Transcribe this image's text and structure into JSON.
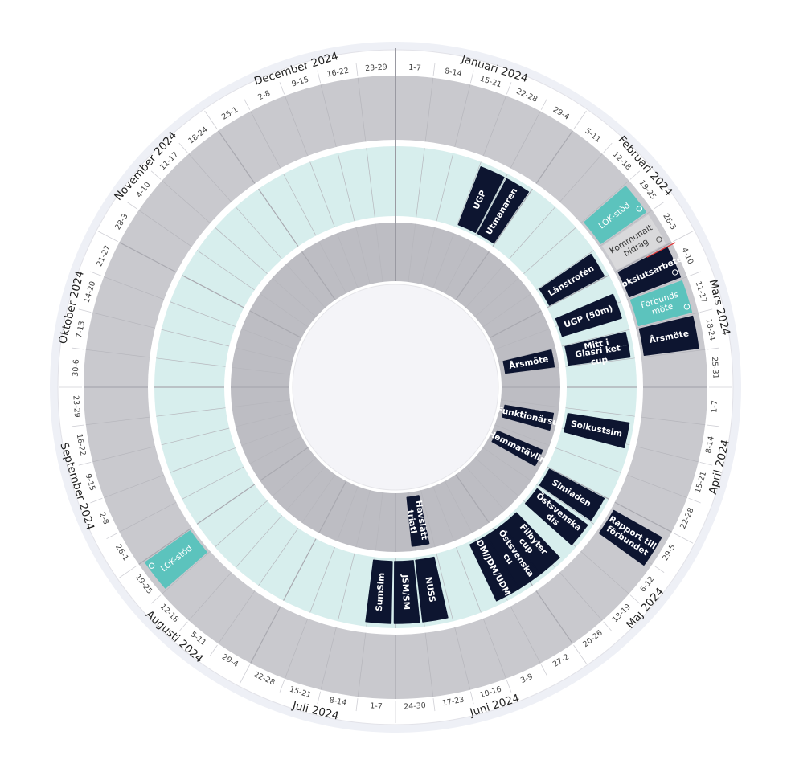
{
  "colors": {
    "background_halo": "#eef0f6",
    "outer_band": "#ffffff",
    "ring_grey": "#c9c9ce",
    "ring_grey_dark": "#bdbdc3",
    "ring_teal": "#d7eeed",
    "center": "#f4f4f8",
    "event_dark": "#0d1530",
    "event_teal": "#5cc3bd",
    "event_grey": "#d9d9db",
    "today_marker": "#e03a3a"
  },
  "months": [
    {
      "label": "Januari 2024",
      "weeks": [
        "1-7",
        "8-14",
        "15-21",
        "22-28",
        "29-4"
      ]
    },
    {
      "label": "Februari 2024",
      "weeks": [
        "5-11",
        "12-18",
        "19-25",
        "26-3"
      ]
    },
    {
      "label": "Mars 2024",
      "weeks": [
        "4-10",
        "11-17",
        "18-24",
        "25-31"
      ]
    },
    {
      "label": "April 2024",
      "weeks": [
        "1-7",
        "8-14",
        "15-21",
        "22-28"
      ]
    },
    {
      "label": "Maj 2024",
      "weeks": [
        "29-5",
        "6-12",
        "13-19",
        "20-26"
      ]
    },
    {
      "label": "Juni 2024",
      "weeks": [
        "27-2",
        "3-9",
        "10-16",
        "17-23",
        "24-30"
      ]
    },
    {
      "label": "Juli 2024",
      "weeks": [
        "1-7",
        "8-14",
        "15-21",
        "22-28"
      ]
    },
    {
      "label": "Augusti 2024",
      "weeks": [
        "29-4",
        "5-11",
        "12-18",
        "19-25"
      ]
    },
    {
      "label": "September 2024",
      "weeks": [
        "26-1",
        "2-8",
        "9-15",
        "16-22",
        "23-29"
      ]
    },
    {
      "label": "Oktober 2024",
      "weeks": [
        "30-6",
        "7-13",
        "14-20",
        "21-27"
      ]
    },
    {
      "label": "November 2024",
      "weeks": [
        "28-3",
        "4-10",
        "11-17",
        "18-24"
      ]
    },
    {
      "label": "December 2024",
      "weeks": [
        "25-1",
        "2-8",
        "9-15",
        "16-22",
        "23-29"
      ]
    }
  ],
  "events": [
    {
      "label": "UGP",
      "ring": "teal",
      "style": "dark",
      "week": 3
    },
    {
      "label": "Utmanaren",
      "ring": "teal",
      "style": "dark",
      "week": 4
    },
    {
      "label": "LOK-stöd",
      "ring": "outer",
      "style": "teal",
      "week": 7,
      "icon": "recurring-icon"
    },
    {
      "label": "Kommunalt bidrag",
      "ring": "outer",
      "style": "grey",
      "week": 8,
      "icon": "recurring-icon"
    },
    {
      "label": "Länstrofén",
      "ring": "teal",
      "style": "dark",
      "week": 8
    },
    {
      "label": "Bokslutsarbete",
      "ring": "outer",
      "style": "dark",
      "week": 9,
      "icon": "recurring-icon"
    },
    {
      "label": "UGP (50m)",
      "ring": "teal",
      "style": "dark",
      "week": 9.6
    },
    {
      "label": "Förbunds möte",
      "ring": "outer",
      "style": "teal",
      "week": 10,
      "icon": "recurring-icon"
    },
    {
      "label": "Mitt i",
      "ring": "teal",
      "style": "dark",
      "week": 11,
      "seg": "left"
    },
    {
      "label": "Glasri ket cup",
      "ring": "teal",
      "style": "dark",
      "week": 11,
      "seg": "right"
    },
    {
      "label": "Årsmöte",
      "ring": "outer",
      "style": "dark",
      "week": 11
    },
    {
      "label": "Årsmöte",
      "ring": "inner",
      "style": "dark",
      "week": 11
    },
    {
      "label": "Funktionärsu",
      "ring": "inner",
      "style": "dark",
      "week": 14.3
    },
    {
      "label": "Solkustsim",
      "ring": "teal",
      "style": "dark",
      "week": 14.2
    },
    {
      "label": "Hemmatävlin",
      "ring": "inner",
      "style": "dark",
      "week": 16.3
    },
    {
      "label": "Simiaden",
      "ring": "teal",
      "style": "dark",
      "week": 17
    },
    {
      "label": "Rapport till förbundet",
      "ring": "outer",
      "style": "dark",
      "week": 17.2
    },
    {
      "label": "Östsvenska dis",
      "ring": "teal",
      "style": "dark",
      "week": 18.1
    },
    {
      "label": "Filbyter cup",
      "ring": "teal",
      "style": "dark",
      "week": 19.6
    },
    {
      "label": "Östsvenska cu",
      "ring": "teal",
      "style": "dark",
      "week": 20.5
    },
    {
      "label": "DM/JDM/UDM",
      "ring": "teal",
      "style": "dark",
      "week": 21.4
    },
    {
      "label": "Havslätt triatl",
      "ring": "inner",
      "style": "dark",
      "week": 24.2
    },
    {
      "label": "NUSS",
      "ring": "teal",
      "style": "dark",
      "week": 24.1
    },
    {
      "label": "JSM/SM",
      "ring": "teal",
      "style": "dark",
      "week": 25.1
    },
    {
      "label": "SumSim",
      "ring": "teal",
      "style": "dark",
      "week": 26.1
    },
    {
      "label": "LOK-stöd",
      "ring": "outer",
      "style": "teal",
      "week": 33,
      "icon": "recurring-icon"
    }
  ]
}
